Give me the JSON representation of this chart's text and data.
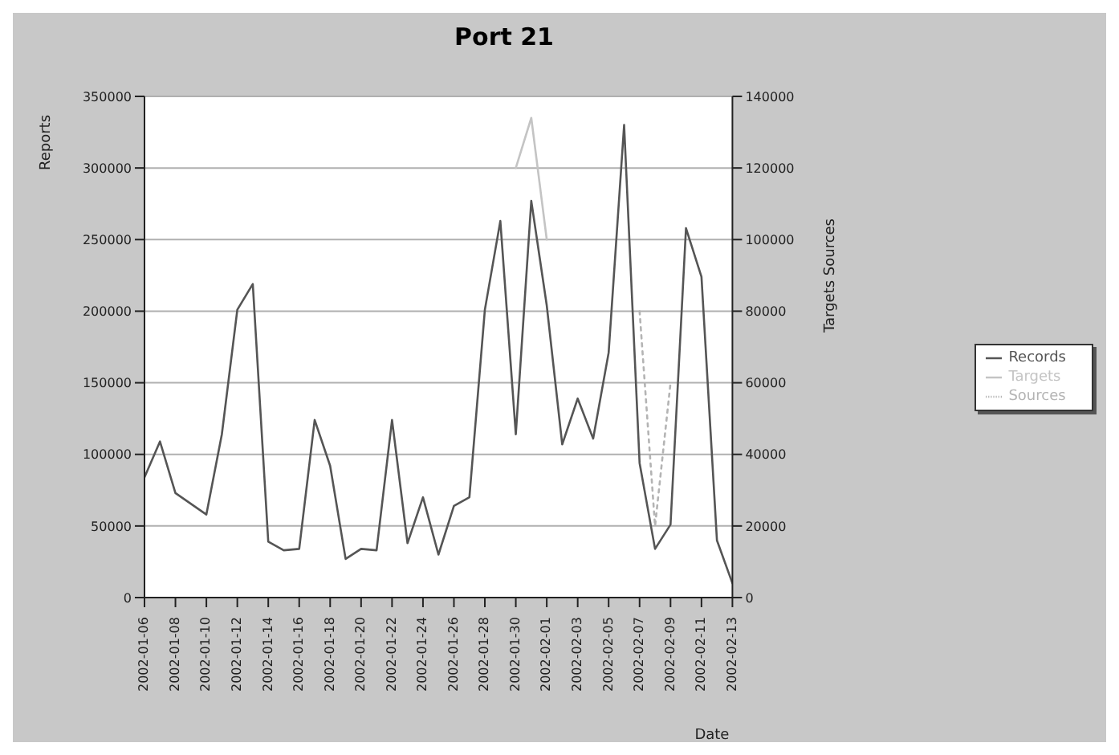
{
  "chart_data": {
    "type": "line",
    "title": "Port 21",
    "xlabel": "Date",
    "ylabel": "Reports",
    "y2label": "Targets  Sources",
    "x": [
      "2002-01-06",
      "2002-01-07",
      "2002-01-08",
      "2002-01-10",
      "2002-01-11",
      "2002-01-12",
      "2002-01-13",
      "2002-01-14",
      "2002-01-15",
      "2002-01-16",
      "2002-01-17",
      "2002-01-18",
      "2002-01-19",
      "2002-01-20",
      "2002-01-21",
      "2002-01-22",
      "2002-01-23",
      "2002-01-24",
      "2002-01-25",
      "2002-01-26",
      "2002-01-27",
      "2002-01-28",
      "2002-01-29",
      "2002-01-30",
      "2002-01-31",
      "2002-02-01",
      "2002-02-02",
      "2002-02-03",
      "2002-02-04",
      "2002-02-05",
      "2002-02-06",
      "2002-02-07",
      "2002-02-08",
      "2002-02-09",
      "2002-02-10",
      "2002-02-11",
      "2002-02-12",
      "2002-02-13"
    ],
    "series": [
      {
        "name": "Records",
        "color": "#555555",
        "values": [
          84000,
          109000,
          73000,
          58000,
          114000,
          201000,
          219000,
          39000,
          33000,
          34000,
          124000,
          92000,
          27000,
          34000,
          33000,
          124000,
          38000,
          70000,
          30000,
          64000,
          70000,
          201000,
          263000,
          114000,
          277000,
          204000,
          107000,
          139000,
          111000,
          171000,
          330000,
          94000,
          34000,
          51000,
          258000,
          224000,
          40000,
          10000
        ]
      },
      {
        "name": "Targets",
        "color": "#c4c4c4",
        "axis": "y2",
        "values": [
          null,
          null,
          null,
          null,
          null,
          null,
          null,
          null,
          null,
          null,
          null,
          null,
          null,
          null,
          null,
          null,
          null,
          null,
          null,
          null,
          null,
          null,
          null,
          120000,
          134000,
          100000,
          null,
          null,
          null,
          null,
          null,
          null,
          null,
          null,
          null,
          null,
          null,
          null
        ]
      },
      {
        "name": "Sources",
        "color": "#b4b4b4",
        "axis": "y2",
        "line_style": "dotted",
        "values": [
          null,
          null,
          null,
          null,
          null,
          null,
          null,
          null,
          null,
          null,
          null,
          null,
          null,
          null,
          null,
          null,
          null,
          null,
          null,
          null,
          null,
          null,
          null,
          null,
          null,
          null,
          null,
          null,
          null,
          null,
          null,
          80000,
          20000,
          60000,
          null,
          null,
          null,
          null
        ]
      }
    ],
    "xlim": [
      "2002-01-06",
      "2002-02-13"
    ],
    "xticks": [
      "2002-01-06",
      "2002-01-08",
      "2002-01-10",
      "2002-01-12",
      "2002-01-14",
      "2002-01-16",
      "2002-01-18",
      "2002-01-20",
      "2002-01-22",
      "2002-01-24",
      "2002-01-26",
      "2002-01-28",
      "2002-01-30",
      "2002-02-01",
      "2002-02-03",
      "2002-02-05",
      "2002-02-07",
      "2002-02-09",
      "2002-02-11",
      "2002-02-13"
    ],
    "ylim": [
      0,
      350000
    ],
    "yticks": [
      0,
      50000,
      100000,
      150000,
      200000,
      250000,
      300000,
      350000
    ],
    "y2lim": [
      0,
      140000
    ],
    "y2ticks": [
      0,
      20000,
      40000,
      60000,
      80000,
      100000,
      120000,
      140000
    ],
    "grid": "y",
    "legend": "right",
    "marker": "none"
  }
}
